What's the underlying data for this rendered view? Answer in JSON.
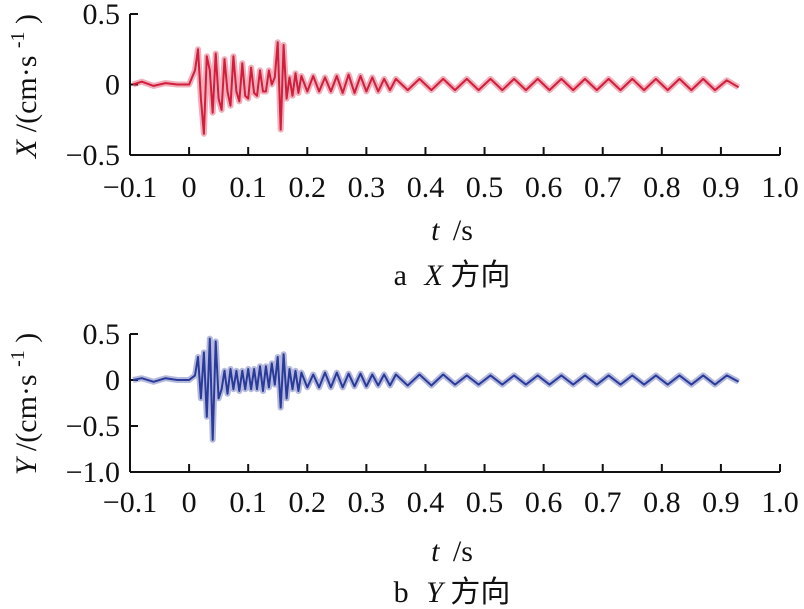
{
  "chart_data": [
    {
      "type": "line",
      "caption_letter": "a",
      "caption_var": "X",
      "caption_dir": "方向",
      "ylabel_var": "X",
      "ylabel_unit": "/(cm·s",
      "ylabel_exp": "-1",
      "ylabel_close": ")",
      "xlabel_var": "t",
      "xlabel_unit": "/s",
      "xlim": [
        -0.1,
        1.0
      ],
      "ylim": [
        -0.5,
        0.5
      ],
      "xticks": [
        "-0.1",
        "0",
        "0.1",
        "0.2",
        "0.3",
        "0.4",
        "0.5",
        "0.6",
        "0.7",
        "0.8",
        "0.9",
        "1.0"
      ],
      "yticks": [
        "0.5",
        "0",
        "-0.5"
      ],
      "ytick_values": [
        0.5,
        0,
        -0.5
      ],
      "color": "#d21e3c",
      "series": [
        {
          "x": [
            -0.095,
            -0.08,
            -0.06,
            -0.04,
            -0.02,
            0.0,
            0.01,
            0.015,
            0.02,
            0.025,
            0.03,
            0.035,
            0.04,
            0.045,
            0.05,
            0.055,
            0.06,
            0.065,
            0.07,
            0.075,
            0.08,
            0.085,
            0.09,
            0.095,
            0.1,
            0.105,
            0.11,
            0.115,
            0.12,
            0.125,
            0.13,
            0.135,
            0.14,
            0.145,
            0.15,
            0.155,
            0.16,
            0.165,
            0.17,
            0.175,
            0.18,
            0.185,
            0.19,
            0.2,
            0.21,
            0.22,
            0.23,
            0.24,
            0.25,
            0.26,
            0.27,
            0.28,
            0.29,
            0.3,
            0.31,
            0.32,
            0.33,
            0.34,
            0.35,
            0.37,
            0.39,
            0.41,
            0.43,
            0.45,
            0.47,
            0.49,
            0.51,
            0.53,
            0.55,
            0.57,
            0.59,
            0.61,
            0.63,
            0.65,
            0.67,
            0.69,
            0.71,
            0.73,
            0.75,
            0.77,
            0.79,
            0.81,
            0.83,
            0.85,
            0.87,
            0.89,
            0.91,
            0.93
          ],
          "y": [
            0.0,
            0.02,
            -0.01,
            0.01,
            0.0,
            0.0,
            0.1,
            0.25,
            -0.1,
            -0.35,
            0.2,
            0.1,
            -0.2,
            0.22,
            -0.1,
            -0.18,
            0.18,
            -0.05,
            -0.15,
            0.2,
            -0.05,
            -0.12,
            0.15,
            -0.08,
            -0.1,
            0.12,
            -0.06,
            -0.08,
            0.1,
            -0.05,
            -0.05,
            0.1,
            0.0,
            0.05,
            0.3,
            -0.32,
            0.28,
            -0.1,
            0.05,
            -0.08,
            0.08,
            -0.06,
            0.06,
            -0.05,
            0.06,
            -0.05,
            0.05,
            -0.05,
            0.06,
            -0.06,
            0.07,
            -0.06,
            0.06,
            -0.05,
            0.05,
            -0.05,
            0.04,
            -0.04,
            0.04,
            -0.04,
            0.04,
            -0.04,
            0.04,
            -0.04,
            0.04,
            -0.04,
            0.04,
            -0.04,
            0.04,
            -0.04,
            0.04,
            -0.04,
            0.04,
            -0.04,
            0.04,
            -0.04,
            0.04,
            -0.04,
            0.04,
            -0.04,
            0.04,
            -0.04,
            0.04,
            -0.04,
            0.04,
            -0.04,
            0.03,
            -0.02
          ]
        }
      ]
    },
    {
      "type": "line",
      "caption_letter": "b",
      "caption_var": "Y",
      "caption_dir": "方向",
      "ylabel_var": "Y",
      "ylabel_unit": "/(cm·s",
      "ylabel_exp": "-1",
      "ylabel_close": ")",
      "xlabel_var": "t",
      "xlabel_unit": "/s",
      "xlim": [
        -0.1,
        1.0
      ],
      "ylim": [
        -1.0,
        0.5
      ],
      "xticks": [
        "-0.1",
        "0",
        "0.1",
        "0.2",
        "0.3",
        "0.4",
        "0.5",
        "0.6",
        "0.7",
        "0.8",
        "0.9",
        "1.0"
      ],
      "yticks": [
        "0.5",
        "0",
        "-0.5",
        "-1.0"
      ],
      "ytick_values": [
        0.5,
        0,
        -0.5,
        -1.0
      ],
      "color": "#2a3a9a",
      "series": [
        {
          "x": [
            -0.095,
            -0.08,
            -0.06,
            -0.04,
            -0.02,
            0.0,
            0.01,
            0.015,
            0.02,
            0.025,
            0.03,
            0.035,
            0.04,
            0.045,
            0.05,
            0.055,
            0.06,
            0.065,
            0.07,
            0.075,
            0.08,
            0.085,
            0.09,
            0.095,
            0.1,
            0.105,
            0.11,
            0.115,
            0.12,
            0.125,
            0.13,
            0.135,
            0.14,
            0.145,
            0.15,
            0.155,
            0.16,
            0.165,
            0.17,
            0.175,
            0.18,
            0.185,
            0.19,
            0.2,
            0.21,
            0.22,
            0.23,
            0.24,
            0.25,
            0.26,
            0.27,
            0.28,
            0.29,
            0.3,
            0.31,
            0.32,
            0.33,
            0.34,
            0.35,
            0.37,
            0.39,
            0.41,
            0.43,
            0.45,
            0.47,
            0.49,
            0.51,
            0.53,
            0.55,
            0.57,
            0.59,
            0.61,
            0.63,
            0.65,
            0.67,
            0.69,
            0.71,
            0.73,
            0.75,
            0.77,
            0.79,
            0.81,
            0.83,
            0.85,
            0.87,
            0.89,
            0.91,
            0.93
          ],
          "y": [
            0.0,
            0.02,
            -0.02,
            0.02,
            0.0,
            0.0,
            0.05,
            0.25,
            -0.2,
            0.3,
            -0.4,
            0.45,
            -0.65,
            0.42,
            -0.2,
            -0.1,
            0.1,
            -0.15,
            0.12,
            -0.1,
            0.1,
            -0.12,
            0.1,
            -0.1,
            0.12,
            -0.1,
            0.12,
            -0.1,
            0.15,
            -0.12,
            0.15,
            -0.08,
            0.18,
            -0.05,
            0.25,
            -0.3,
            0.28,
            -0.2,
            0.12,
            -0.1,
            0.1,
            -0.12,
            0.08,
            -0.08,
            0.06,
            -0.08,
            0.08,
            -0.08,
            0.08,
            -0.08,
            0.07,
            -0.07,
            0.07,
            -0.07,
            0.06,
            -0.06,
            0.06,
            -0.06,
            0.06,
            -0.06,
            0.06,
            -0.06,
            0.06,
            -0.05,
            0.05,
            -0.05,
            0.05,
            -0.05,
            0.05,
            -0.05,
            0.05,
            -0.05,
            0.05,
            -0.05,
            0.05,
            -0.05,
            0.05,
            -0.05,
            0.05,
            -0.05,
            0.05,
            -0.05,
            0.05,
            -0.05,
            0.05,
            -0.05,
            0.05,
            -0.02
          ]
        }
      ]
    }
  ]
}
